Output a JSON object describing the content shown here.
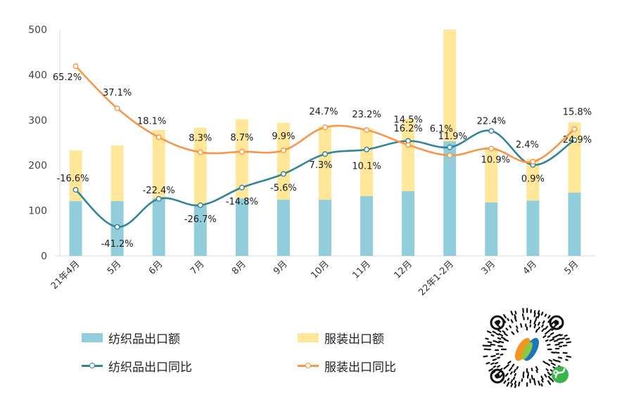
{
  "chart_data": {
    "type": "bar+line",
    "categories": [
      "21年4月",
      "5月",
      "6月",
      "7月",
      "8月",
      "9月",
      "10月",
      "11月",
      "12月",
      "22年1-2月",
      "3月",
      "4月",
      "5月"
    ],
    "ylim": [
      0,
      500
    ],
    "yticks": [
      0,
      100,
      200,
      300,
      400,
      500
    ],
    "stacked": true,
    "series": [
      {
        "name": "纺织品出口额",
        "kind": "bar",
        "color": "#92CDDC",
        "values": [
          121,
          121,
          127,
          113,
          127,
          124,
          124,
          132,
          143,
          253,
          118,
          122,
          140
        ]
      },
      {
        "name": "服装出口额",
        "kind": "bar",
        "color": "#FFE699",
        "values": [
          112,
          123,
          151,
          170,
          175,
          170,
          162,
          150,
          160,
          247,
          122,
          92,
          155
        ]
      },
      {
        "name": "纺织品出口同比",
        "kind": "line",
        "color": "#31849B",
        "y_position": [
          146,
          64,
          126,
          112,
          151,
          181,
          225,
          235,
          254,
          240,
          276,
          201,
          256
        ],
        "labels": [
          "-16.6%",
          "-41.2%",
          "-22.4%",
          "-26.7%",
          "-14.8%",
          "-5.6%",
          "7.3%",
          "10.1%",
          "14.5%",
          "6.1%",
          "22.4%",
          "0.9%",
          "24.9%"
        ]
      },
      {
        "name": "服装出口同比",
        "kind": "line",
        "color": "#F79646",
        "y_position": [
          419,
          326,
          262,
          229,
          230,
          233,
          284,
          278,
          245,
          222,
          237,
          208,
          280
        ],
        "labels": [
          "65.2%",
          "37.1%",
          "18.1%",
          "8.3%",
          "8.7%",
          "9.9%",
          "24.7%",
          "23.2%",
          "16.2%",
          "11.9%",
          "10.9%",
          "2.4%",
          "15.8%"
        ]
      }
    ]
  },
  "legend": {
    "bar1": "纺织品出口额",
    "bar2": "服装出口额",
    "line1": "纺织品出口同比",
    "line2": "服装出口同比"
  },
  "colors": {
    "teal": "#31849B",
    "orange": "#F79646",
    "bar_blue": "#92CDDC",
    "bar_yellow": "#FFE699",
    "qr_green": "#39B54A"
  },
  "qr_code": {
    "icon": "wechat-mini-program-qr-code"
  }
}
